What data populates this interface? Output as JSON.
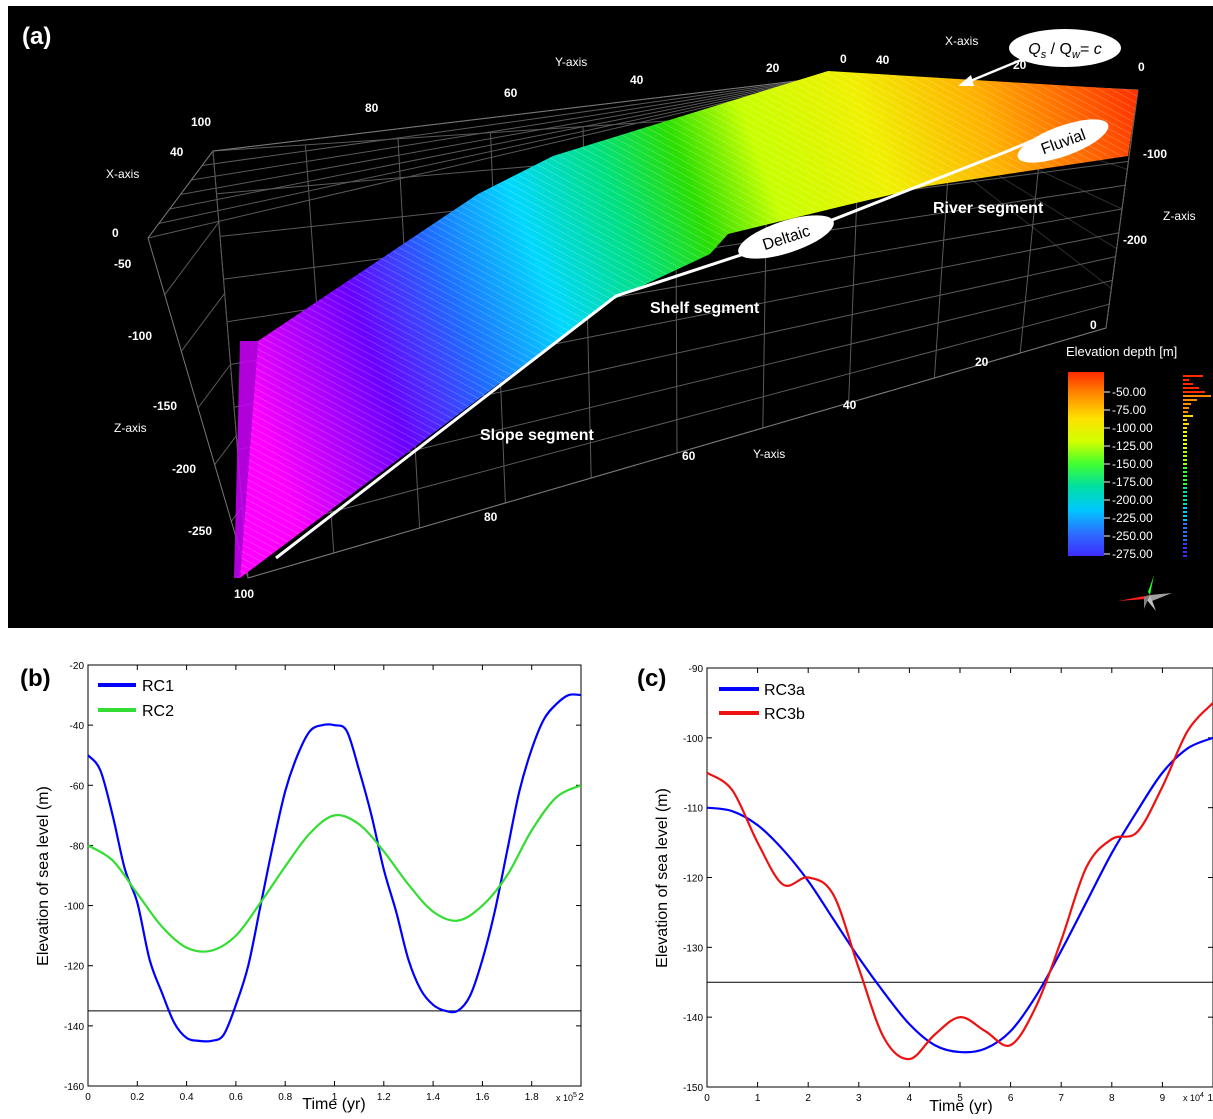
{
  "panel_a": {
    "label": "(a)",
    "axis_titles": {
      "y_top": "Y-axis",
      "x_top": "X-axis",
      "x_left": "X-axis",
      "z_left": "Z-axis",
      "z_right": "Z-axis",
      "y_bottom": "Y-axis"
    },
    "ticks": {
      "y_top": [
        "100",
        "80",
        "60",
        "40",
        "20",
        "0"
      ],
      "x_top": [
        "40",
        "20",
        "0"
      ],
      "x_left": [
        "40",
        "0"
      ],
      "z_left": [
        "-50",
        "-100",
        "-150",
        "-200",
        "-250"
      ],
      "z_right": [
        "-100",
        "-200",
        "0"
      ],
      "y_bottom": [
        "20",
        "40",
        "60",
        "80",
        "100"
      ]
    },
    "segments": {
      "river": "River segment",
      "shelf": "Shelf segment",
      "slope": "Slope segment"
    },
    "callouts": {
      "deltaic": "Deltaic",
      "fluvial": "Fluvial",
      "qs_main": "Q",
      "qs_sub_s": "s",
      "qs_slash": " / Q",
      "qs_sub_w": "w",
      "qs_eq": "= ",
      "qs_c": "c"
    },
    "colorbar": {
      "title": "Elevation depth [m]",
      "labels": [
        "-50.00",
        "-75.00",
        "-100.00",
        "-125.00",
        "-150.00",
        "-175.00",
        "-200.00",
        "-225.00",
        "-250.00",
        "-275.00"
      ],
      "colors": [
        "#ff2a00",
        "#ff8a00",
        "#ffd400",
        "#e6ff00",
        "#9cff00",
        "#2bff2b",
        "#00e0a0",
        "#00c8ff",
        "#2d6bff",
        "#3d2dff"
      ]
    }
  },
  "chart_data": [
    {
      "type": "line",
      "panel": "(b)",
      "xlabel": "Time (yr)",
      "ylabel": "Elevation of sea level (m)",
      "x_multiplier": "x 10",
      "x_multiplier_exp": "5",
      "xlim": [
        0,
        2
      ],
      "ylim": [
        -160,
        -20
      ],
      "xticks": [
        "0",
        "0.2",
        "0.4",
        "0.6",
        "0.8",
        "1",
        "1.2",
        "1.4",
        "1.6",
        "1.8",
        "2"
      ],
      "yticks": [
        "-20",
        "-40",
        "-60",
        "-80",
        "-100",
        "-120",
        "-140",
        "-160"
      ],
      "reference_line": -135,
      "legend": "top-left",
      "series": [
        {
          "name": "RC1",
          "color": "#0000ff",
          "x": [
            0,
            0.05,
            0.1,
            0.15,
            0.2,
            0.25,
            0.3,
            0.35,
            0.4,
            0.45,
            0.5,
            0.55,
            0.6,
            0.65,
            0.7,
            0.75,
            0.8,
            0.85,
            0.9,
            0.95,
            1.0,
            1.05,
            1.1,
            1.15,
            1.2,
            1.25,
            1.3,
            1.35,
            1.4,
            1.45,
            1.5,
            1.55,
            1.6,
            1.65,
            1.7,
            1.75,
            1.8,
            1.85,
            1.9,
            1.95,
            2.0
          ],
          "values": [
            -50,
            -55,
            -70,
            -88,
            -99,
            -118,
            -129,
            -139,
            -144,
            -145,
            -145,
            -143,
            -133,
            -120,
            -100,
            -80,
            -62,
            -50,
            -42,
            -40,
            -40,
            -42,
            -55,
            -70,
            -88,
            -102,
            -118,
            -128,
            -133,
            -135,
            -135,
            -130,
            -118,
            -102,
            -82,
            -62,
            -48,
            -38,
            -33,
            -30,
            -30
          ]
        },
        {
          "name": "RC2",
          "color": "#33dd33",
          "x": [
            0,
            0.1,
            0.2,
            0.3,
            0.4,
            0.5,
            0.6,
            0.7,
            0.8,
            0.9,
            1.0,
            1.1,
            1.2,
            1.3,
            1.4,
            1.5,
            1.6,
            1.7,
            1.8,
            1.9,
            2.0
          ],
          "values": [
            -80,
            -85,
            -96,
            -107,
            -114,
            -115,
            -110,
            -99,
            -87,
            -76,
            -70,
            -73,
            -82,
            -93,
            -102,
            -105,
            -100,
            -90,
            -75,
            -64,
            -60
          ]
        }
      ]
    },
    {
      "type": "line",
      "panel": "(c)",
      "xlabel": "Time (yr)",
      "ylabel": "Elevation of sea level (m)",
      "x_multiplier": "x 10",
      "x_multiplier_exp": "4",
      "xlim": [
        0,
        10
      ],
      "ylim": [
        -150,
        -90
      ],
      "xticks": [
        "0",
        "1",
        "2",
        "3",
        "4",
        "5",
        "6",
        "7",
        "8",
        "9",
        "10"
      ],
      "yticks": [
        "-90",
        "-100",
        "-110",
        "-120",
        "-130",
        "-140",
        "-150"
      ],
      "reference_line": -135,
      "legend": "top-left",
      "series": [
        {
          "name": "RC3a",
          "color": "#0000ff",
          "x": [
            0,
            0.5,
            1,
            1.5,
            2,
            2.5,
            3,
            3.5,
            4,
            4.5,
            5,
            5.5,
            6,
            6.5,
            7,
            7.5,
            8,
            8.5,
            9,
            9.5,
            10
          ],
          "values": [
            -110,
            -110.5,
            -112.5,
            -116,
            -120.5,
            -126,
            -131.5,
            -136.5,
            -141,
            -144,
            -145,
            -144.5,
            -142,
            -137,
            -130.5,
            -123.5,
            -116.5,
            -110.5,
            -105,
            -101.5,
            -100
          ]
        },
        {
          "name": "RC3b",
          "color": "#ee1111",
          "x": [
            0,
            0.5,
            1,
            1.5,
            2,
            2.5,
            3,
            3.5,
            4,
            4.5,
            5,
            5.5,
            6,
            6.5,
            7,
            7.5,
            8,
            8.5,
            9,
            9.5,
            10
          ],
          "values": [
            -105,
            -107.5,
            -115,
            -121,
            -120,
            -122.5,
            -133,
            -143,
            -146,
            -142.5,
            -140,
            -142,
            -144,
            -138.5,
            -129,
            -118.5,
            -114.5,
            -113.5,
            -107,
            -99,
            -95
          ]
        }
      ]
    }
  ]
}
